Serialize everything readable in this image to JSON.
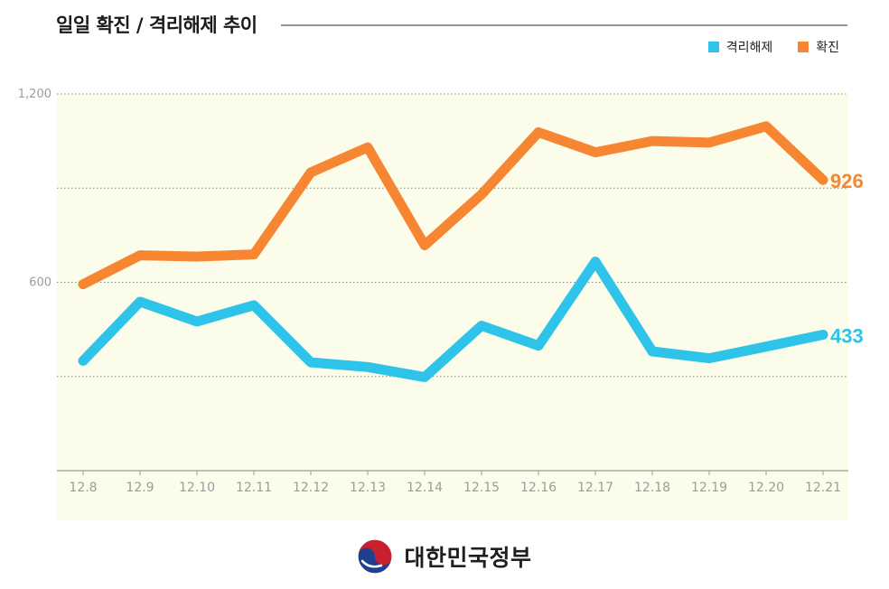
{
  "header": {
    "title": "일일 확진 / 격리해제 추이"
  },
  "legend": [
    {
      "label": "격리해제",
      "color": "#2ec4ea"
    },
    {
      "label": "확진",
      "color": "#f68631"
    }
  ],
  "chart_data": {
    "type": "line",
    "title": "일일 확진 / 격리해제 추이",
    "xlabel": "",
    "ylabel": "",
    "ylim": [
      0,
      1200
    ],
    "yticks": [
      0,
      300,
      600,
      900,
      1200
    ],
    "ytick_labels": [
      "",
      "",
      "600",
      "",
      "1,200"
    ],
    "grid": true,
    "legend_position": "top-right",
    "categories": [
      "12.8",
      "12.9",
      "12.10",
      "12.11",
      "12.12",
      "12.13",
      "12.14",
      "12.15",
      "12.16",
      "12.17",
      "12.18",
      "12.19",
      "12.20",
      "12.21"
    ],
    "series": [
      {
        "name": "확진",
        "color": "#f68631",
        "values": [
          594,
          686,
          682,
          689,
          950,
          1030,
          718,
          880,
          1078,
          1014,
          1050,
          1045,
          1097,
          926
        ],
        "end_label": "926"
      },
      {
        "name": "격리해제",
        "color": "#2ec4ea",
        "values": [
          350,
          538,
          475,
          527,
          345,
          330,
          298,
          462,
          398,
          666,
          380,
          358,
          395,
          433
        ],
        "end_label": "433"
      }
    ]
  },
  "footer": {
    "gov_name": "대한민국정부"
  }
}
